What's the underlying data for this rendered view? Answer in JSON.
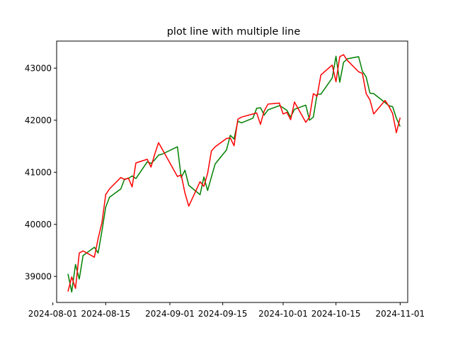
{
  "chart_data": {
    "type": "line",
    "title": "plot line with multiple line",
    "xlabel": "",
    "ylabel": "",
    "xlim": [
      "2024-08-02",
      "2024-11-03"
    ],
    "ylim": [
      38500,
      43520
    ],
    "x_ticks": [
      "2024-08-01",
      "2024-08-15",
      "2024-09-01",
      "2024-09-15",
      "2024-10-01",
      "2024-10-15",
      "2024-11-01"
    ],
    "y_ticks": [
      39000,
      40000,
      41000,
      42000,
      43000
    ],
    "grid": false,
    "legend": "none",
    "x": [
      "2024-08-05",
      "2024-08-06",
      "2024-08-07",
      "2024-08-08",
      "2024-08-09",
      "2024-08-12",
      "2024-08-13",
      "2024-08-14",
      "2024-08-15",
      "2024-08-16",
      "2024-08-19",
      "2024-08-20",
      "2024-08-21",
      "2024-08-22",
      "2024-08-23",
      "2024-08-26",
      "2024-08-27",
      "2024-08-28",
      "2024-08-29",
      "2024-08-30",
      "2024-09-03",
      "2024-09-04",
      "2024-09-05",
      "2024-09-06",
      "2024-09-09",
      "2024-09-10",
      "2024-09-11",
      "2024-09-12",
      "2024-09-13",
      "2024-09-16",
      "2024-09-17",
      "2024-09-18",
      "2024-09-19",
      "2024-09-20",
      "2024-09-23",
      "2024-09-24",
      "2024-09-25",
      "2024-09-26",
      "2024-09-27",
      "2024-09-30",
      "2024-10-01",
      "2024-10-02",
      "2024-10-03",
      "2024-10-04",
      "2024-10-07",
      "2024-10-08",
      "2024-10-09",
      "2024-10-10",
      "2024-10-11",
      "2024-10-14",
      "2024-10-15",
      "2024-10-16",
      "2024-10-17",
      "2024-10-18",
      "2024-10-21",
      "2024-10-22",
      "2024-10-23",
      "2024-10-24",
      "2024-10-25",
      "2024-10-28",
      "2024-10-29",
      "2024-10-30",
      "2024-10-31",
      "2024-11-01"
    ],
    "series": [
      {
        "color": "#008000",
        "values": [
          39050,
          38700,
          39230,
          38950,
          39400,
          39560,
          39450,
          39870,
          40330,
          40520,
          40680,
          40870,
          40880,
          40930,
          40880,
          41200,
          41170,
          41240,
          41330,
          41350,
          41490,
          40900,
          41040,
          40750,
          40570,
          40910,
          40650,
          40910,
          41160,
          41430,
          41710,
          41640,
          41980,
          41950,
          42040,
          42230,
          42240,
          42100,
          42200,
          42280,
          42240,
          42190,
          42060,
          42210,
          42290,
          42000,
          42060,
          42500,
          42500,
          42810,
          43230,
          42730,
          43110,
          43180,
          43220,
          42940,
          42830,
          42520,
          42510,
          42340,
          42280,
          42260,
          42040,
          41880
        ]
      },
      {
        "color": "#ff0000",
        "values": [
          38710,
          38990,
          38770,
          39450,
          39490,
          39370,
          39730,
          40030,
          40570,
          40680,
          40900,
          40860,
          40890,
          40720,
          41180,
          41250,
          41100,
          41350,
          41570,
          41440,
          40920,
          40950,
          40600,
          40350,
          40820,
          40730,
          40980,
          41410,
          41490,
          41650,
          41660,
          41510,
          42020,
          42060,
          42120,
          42140,
          41920,
          42180,
          42310,
          42330,
          42120,
          42150,
          42010,
          42350,
          41960,
          42060,
          42510,
          42460,
          42870,
          43060,
          42740,
          43220,
          43260,
          43150,
          42930,
          42900,
          42510,
          42390,
          42120,
          42380,
          42270,
          42130,
          41760,
          42050
        ]
      }
    ]
  }
}
